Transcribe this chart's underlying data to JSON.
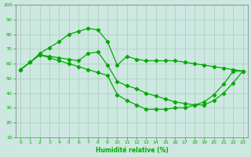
{
  "title": "",
  "xlabel": "Humidité relative (%)",
  "ylabel": "",
  "bg_color": "#cce8e0",
  "grid_color": "#aaccbb",
  "line_color": "#00aa00",
  "marker": "D",
  "markersize": 2.2,
  "linewidth": 0.9,
  "xlim": [
    -0.5,
    23.5
  ],
  "ylim": [
    10,
    100
  ],
  "xticks": [
    0,
    1,
    2,
    3,
    4,
    5,
    6,
    7,
    8,
    9,
    10,
    11,
    12,
    13,
    14,
    15,
    16,
    17,
    18,
    19,
    20,
    21,
    22,
    23
  ],
  "yticks": [
    10,
    20,
    30,
    40,
    50,
    60,
    70,
    80,
    90,
    100
  ],
  "series": [
    [
      56,
      61,
      67,
      71,
      75,
      80,
      82,
      84,
      83,
      75,
      59,
      65,
      63,
      62,
      62,
      62,
      62,
      61,
      60,
      59,
      58,
      57,
      56,
      55
    ],
    [
      56,
      61,
      66,
      65,
      64,
      63,
      62,
      67,
      68,
      59,
      48,
      45,
      43,
      40,
      38,
      36,
      34,
      33,
      32,
      32,
      35,
      40,
      47,
      55
    ],
    [
      56,
      61,
      66,
      64,
      62,
      60,
      58,
      56,
      54,
      52,
      39,
      35,
      32,
      29,
      29,
      29,
      30,
      30,
      32,
      34,
      39,
      46,
      55,
      55
    ]
  ]
}
